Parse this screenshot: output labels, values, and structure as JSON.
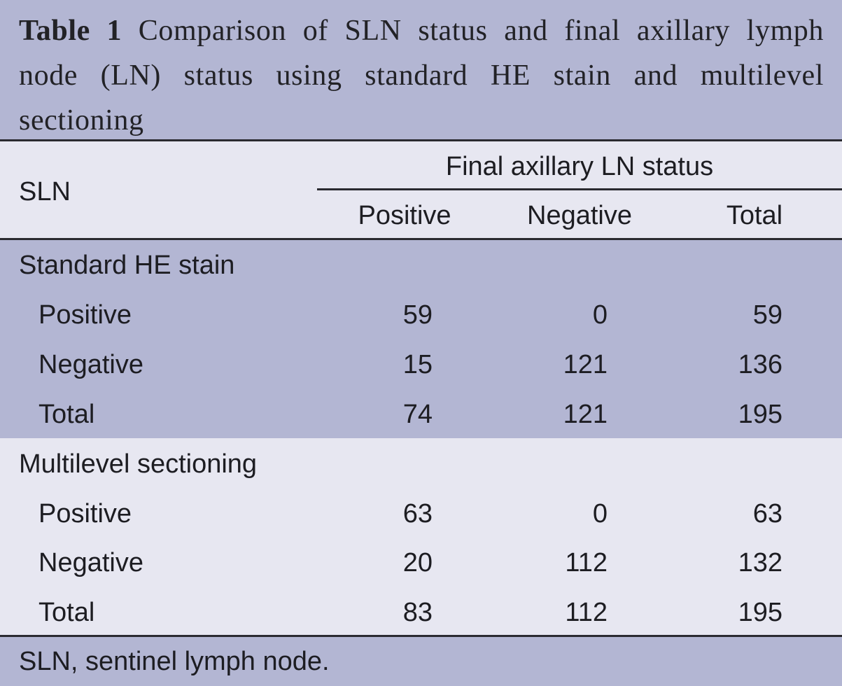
{
  "caption": {
    "label": "Table 1",
    "text": "Comparison of SLN status and final axillary lymph node (LN) status using standard HE stain and multilevel sectioning"
  },
  "header": {
    "row_label": "SLN",
    "spanner": "Final axillary LN status",
    "columns": [
      "Positive",
      "Negative",
      "Total"
    ]
  },
  "groups": [
    {
      "title": "Standard HE stain",
      "rows": [
        {
          "label": "Positive",
          "values": [
            "59",
            "0",
            "59"
          ]
        },
        {
          "label": "Negative",
          "values": [
            "15",
            "121",
            "136"
          ]
        },
        {
          "label": "Total",
          "values": [
            "74",
            "121",
            "195"
          ]
        }
      ]
    },
    {
      "title": "Multilevel sectioning",
      "rows": [
        {
          "label": "Positive",
          "values": [
            "63",
            "0",
            "63"
          ]
        },
        {
          "label": "Negative",
          "values": [
            "20",
            "112",
            "132"
          ]
        },
        {
          "label": "Total",
          "values": [
            "83",
            "112",
            "195"
          ]
        }
      ]
    }
  ],
  "footnote": "SLN, sentinel lymph node.",
  "colors": {
    "band_dark": "#b3b6d3",
    "band_light": "#e7e7f1",
    "rule": "#2a2a30",
    "text": "#1d1d22"
  }
}
